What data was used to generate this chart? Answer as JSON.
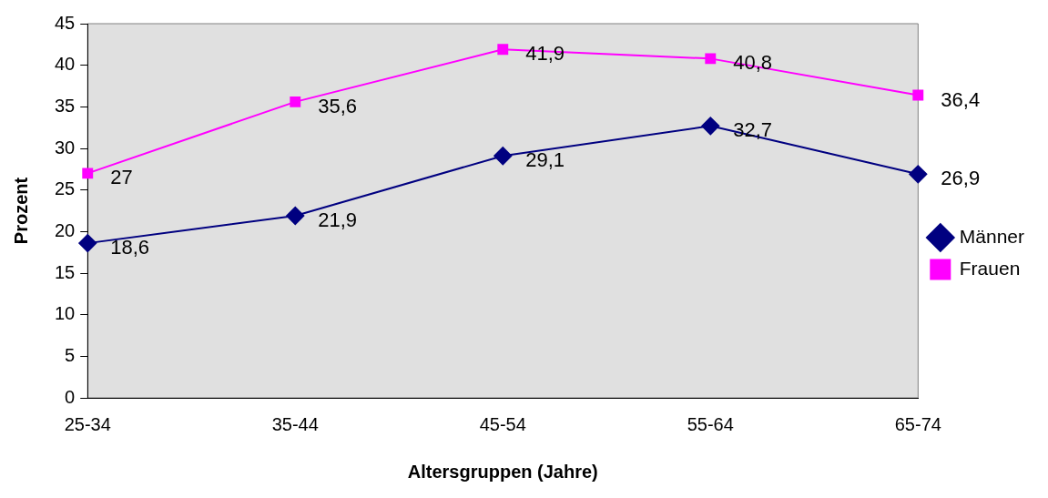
{
  "chart_data": {
    "type": "line",
    "xlabel": "Altersgruppen (Jahre)",
    "ylabel": "Prozent",
    "categories": [
      "25-34",
      "35-44",
      "45-54",
      "55-64",
      "65-74"
    ],
    "series": [
      {
        "name": "Männer",
        "color": "#000080",
        "marker": "diamond",
        "values": [
          18.6,
          21.9,
          29.1,
          32.7,
          26.9
        ],
        "value_labels": [
          "18,6",
          "21,9",
          "29,1",
          "32,7",
          "26,9"
        ]
      },
      {
        "name": "Frauen",
        "color": "#ff00ff",
        "marker": "square",
        "values": [
          27,
          35.6,
          41.9,
          40.8,
          36.4
        ],
        "value_labels": [
          "27",
          "35,6",
          "41,9",
          "40,8",
          "36,4"
        ]
      }
    ],
    "ylim": [
      0,
      45
    ],
    "yticks": [
      0,
      5,
      10,
      15,
      20,
      25,
      30,
      35,
      40,
      45
    ],
    "grid": false,
    "legend": "right"
  }
}
